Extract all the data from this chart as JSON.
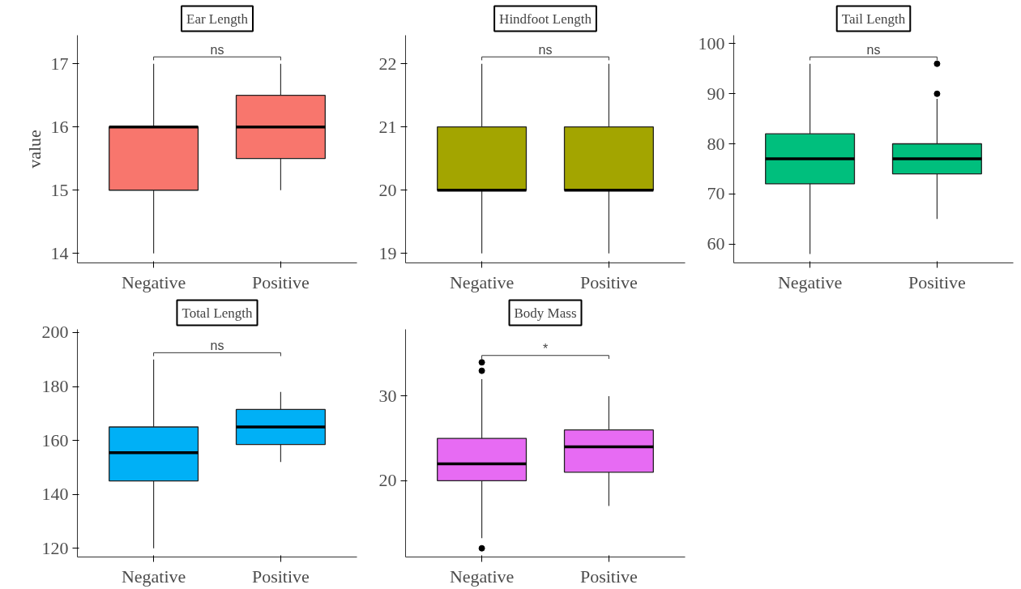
{
  "chart_data": [
    {
      "type": "box",
      "title": "Ear Length",
      "ylabel": "value",
      "categories": [
        "Negative",
        "Positive"
      ],
      "colors": [
        "#f8766d",
        "#f8766d"
      ],
      "ylim": [
        13.85,
        17.45
      ],
      "yticks": [
        14,
        15,
        16,
        17
      ],
      "grid": false,
      "annotations": [
        "ns"
      ],
      "boxes": [
        {
          "low": 14,
          "q1": 15,
          "median": 16,
          "q3": 16,
          "high": 17
        },
        {
          "low": 15,
          "q1": 15.5,
          "median": 16,
          "q3": 16.5,
          "high": 17
        }
      ]
    },
    {
      "type": "box",
      "title": "Hindfoot Length",
      "categories": [
        "Negative",
        "Positive"
      ],
      "colors": [
        "#a3a500",
        "#a3a500"
      ],
      "ylim": [
        18.85,
        22.45
      ],
      "yticks": [
        19,
        20,
        21,
        22
      ],
      "grid": false,
      "annotations": [
        "ns"
      ],
      "boxes": [
        {
          "low": 19,
          "q1": 20,
          "median": 20,
          "q3": 21,
          "high": 22
        },
        {
          "low": 19,
          "q1": 20,
          "median": 20,
          "q3": 21,
          "high": 22
        }
      ]
    },
    {
      "type": "box",
      "title": "Tail Length",
      "categories": [
        "Negative",
        "Positive"
      ],
      "colors": [
        "#00bf7d",
        "#00bf7d"
      ],
      "ylim": [
        56.2,
        101.7
      ],
      "yticks": [
        60,
        70,
        80,
        90,
        100
      ],
      "grid": false,
      "annotations": [
        "ns"
      ],
      "boxes": [
        {
          "low": 58,
          "q1": 72,
          "median": 77,
          "q3": 82,
          "high": 96
        },
        {
          "low": 65,
          "q1": 74,
          "median": 77,
          "q3": 80,
          "high": 89,
          "outliers": [
            90,
            96
          ]
        }
      ]
    },
    {
      "type": "box",
      "title": "Total Length",
      "categories": [
        "Negative",
        "Positive"
      ],
      "colors": [
        "#00b0f6",
        "#00b0f6"
      ],
      "ylim": [
        116.8,
        201.2
      ],
      "yticks": [
        120,
        140,
        160,
        180,
        200
      ],
      "grid": false,
      "annotations": [
        "ns"
      ],
      "boxes": [
        {
          "low": 120,
          "q1": 145,
          "median": 155.5,
          "q3": 165,
          "high": 190
        },
        {
          "low": 152,
          "q1": 158.5,
          "median": 165,
          "q3": 171.5,
          "high": 178
        }
      ]
    },
    {
      "type": "box",
      "title": "Body Mass",
      "categories": [
        "Negative",
        "Positive"
      ],
      "colors": [
        "#e76bf3",
        "#e76bf3"
      ],
      "ylim": [
        10.97,
        37.9
      ],
      "yticks": [
        20,
        30
      ],
      "grid": false,
      "annotations": [
        "*"
      ],
      "boxes": [
        {
          "low": 13.2,
          "q1": 20,
          "median": 22,
          "q3": 25,
          "high": 32,
          "outliers": [
            34,
            33,
            12
          ]
        },
        {
          "low": 17,
          "q1": 21,
          "median": 24,
          "q3": 26,
          "high": 30
        }
      ]
    }
  ]
}
